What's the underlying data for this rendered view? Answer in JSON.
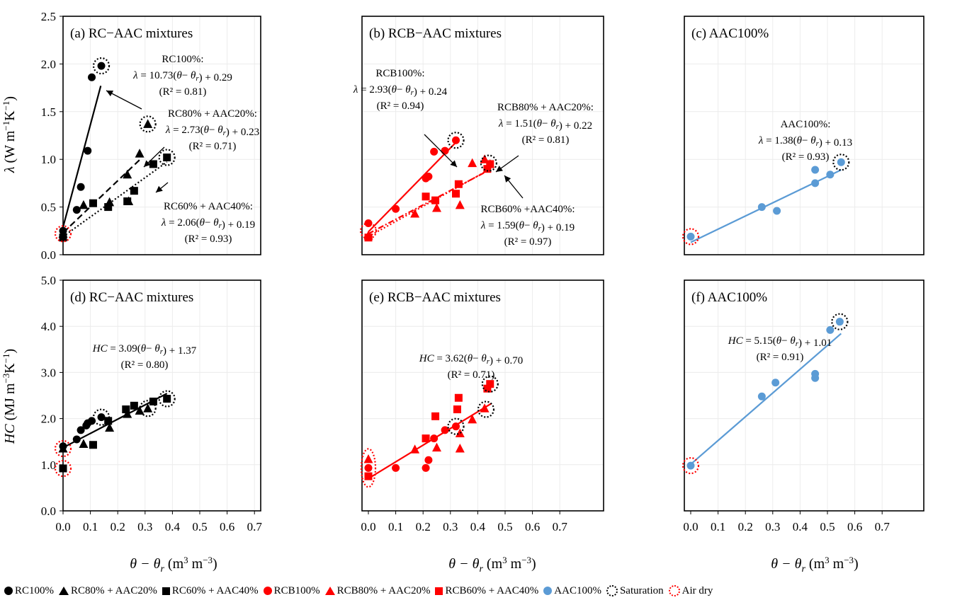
{
  "figure": {
    "y_labels": {
      "top": {
        "symbol": "λ",
        "units": "(W m",
        "exp1": "−1",
        "mid": "K",
        "exp2": "−1",
        "close": ")"
      },
      "bottom": {
        "symbol": "HC",
        "units": "(MJ m",
        "exp1": "−3",
        "mid": "K",
        "exp2": "−1",
        "close": ")"
      }
    },
    "x_label": {
      "symbol": "θ − θ",
      "sub": "r",
      "units": " (m",
      "exp1": "3",
      "mid": " m",
      "exp2": "−3",
      "close": ")"
    }
  },
  "legend": {
    "items": [
      {
        "label": "RC100%",
        "marker": "circle",
        "color": "#000000"
      },
      {
        "label": "RC80% + AAC20%",
        "marker": "triangle",
        "color": "#000000"
      },
      {
        "label": "RC60% + AAC40%",
        "marker": "square",
        "color": "#000000"
      },
      {
        "label": "RCB100%",
        "marker": "circle",
        "color": "#ff0000"
      },
      {
        "label": "RCB80% + AAC20%",
        "marker": "triangle",
        "color": "#ff0000"
      },
      {
        "label": "RCB60% + AAC40%",
        "marker": "square",
        "color": "#ff0000"
      },
      {
        "label": "AAC100%",
        "marker": "circle",
        "color": "#5b9bd5"
      },
      {
        "label": "Saturation",
        "marker": "ring",
        "color": "#000000"
      },
      {
        "label": "Air dry",
        "marker": "ring",
        "color": "#ff0000"
      }
    ]
  },
  "chart_data": [
    {
      "id": "a",
      "type": "scatter",
      "title": "(a) RC−AAC mixtures",
      "xlim": [
        0,
        0.7
      ],
      "ylim": [
        0,
        2.5
      ],
      "xticks": [
        "0.0",
        "0.1",
        "0.2",
        "0.3",
        "0.4",
        "0.5",
        "0.6",
        "0.7"
      ],
      "yticks": [
        "0.0",
        "0.5",
        "1.0",
        "1.5",
        "2.0",
        "2.5"
      ],
      "show_xticks": false,
      "show_yticks": true,
      "series": [
        {
          "name": "RC100%",
          "marker": "circle",
          "color": "#000000",
          "line": "solid",
          "fit": {
            "slope": 10.73,
            "intercept": 0.29,
            "xmax": 0.138
          },
          "points": [
            [
              0,
              0.25
            ],
            [
              0.05,
              0.47
            ],
            [
              0.065,
              0.71
            ],
            [
              0.09,
              1.09
            ],
            [
              0.105,
              1.86
            ],
            [
              0.14,
              1.98
            ]
          ]
        },
        {
          "name": "RC80% + AAC20%",
          "marker": "triangle",
          "color": "#000000",
          "line": "dashed",
          "fit": {
            "slope": 2.73,
            "intercept": 0.23,
            "xmax": 0.28
          },
          "points": [
            [
              0,
              0.22
            ],
            [
              0.075,
              0.52
            ],
            [
              0.17,
              0.55
            ],
            [
              0.235,
              0.84
            ],
            [
              0.24,
              0.56
            ],
            [
              0.28,
              1.06
            ],
            [
              0.31,
              1.37
            ]
          ]
        },
        {
          "name": "RC60% + AAC40%",
          "marker": "square",
          "color": "#000000",
          "line": "dotted",
          "fit": {
            "slope": 2.06,
            "intercept": 0.19,
            "xmax": 0.38
          },
          "points": [
            [
              0,
              0.18
            ],
            [
              0.11,
              0.54
            ],
            [
              0.165,
              0.5
            ],
            [
              0.235,
              0.56
            ],
            [
              0.26,
              0.67
            ],
            [
              0.33,
              0.95
            ],
            [
              0.38,
              1.02
            ]
          ]
        }
      ],
      "saturation": [
        [
          0.14,
          1.98
        ],
        [
          0.31,
          1.37
        ],
        [
          0.38,
          1.02
        ]
      ],
      "air_dry": [
        [
          0,
          0.22
        ]
      ],
      "annotations": [
        {
          "lines": [
            "RC100%:",
            "λ = 10.73(θ− θr) + 0.29",
            "(R² = 0.81)"
          ]
        },
        {
          "lines": [
            "RC80% + AAC20%:",
            "λ = 2.73(θ− θr) + 0.23",
            "(R² = 0.71)"
          ]
        },
        {
          "lines": [
            "RC60% + AAC40%:",
            "λ = 2.06(θ− θr) + 0.19",
            "(R² = 0.93)"
          ]
        }
      ]
    },
    {
      "id": "b",
      "type": "scatter",
      "title": "(b) RCB−AAC mixtures",
      "xlim": [
        0,
        0.7
      ],
      "ylim": [
        0,
        2.5
      ],
      "xticks": [],
      "yticks": [],
      "show_xticks": false,
      "show_yticks": false,
      "series": [
        {
          "name": "RCB100%",
          "marker": "circle",
          "color": "#ff0000",
          "line": "solid",
          "fit": {
            "slope": 2.93,
            "intercept": 0.24,
            "xmax": 0.32
          },
          "points": [
            [
              0,
              0.33
            ],
            [
              0.1,
              0.48
            ],
            [
              0.21,
              0.8
            ],
            [
              0.22,
              0.82
            ],
            [
              0.24,
              1.08
            ],
            [
              0.28,
              1.09
            ],
            [
              0.32,
              1.2
            ]
          ]
        },
        {
          "name": "RCB80% + AAC20%",
          "marker": "triangle",
          "color": "#ff0000",
          "line": "dashdot",
          "fit": {
            "slope": 1.51,
            "intercept": 0.22,
            "xmax": 0.44
          },
          "points": [
            [
              0,
              0.2
            ],
            [
              0.17,
              0.43
            ],
            [
              0.25,
              0.49
            ],
            [
              0.335,
              0.52
            ],
            [
              0.38,
              0.96
            ],
            [
              0.425,
              1.0
            ],
            [
              0.445,
              0.95
            ]
          ]
        },
        {
          "name": "RCB60% + AAC40%",
          "marker": "square",
          "color": "#ff0000",
          "line": "dotted",
          "fit": {
            "slope": 1.59,
            "intercept": 0.19,
            "xmax": 0.45
          },
          "points": [
            [
              0,
              0.18
            ],
            [
              0.21,
              0.61
            ],
            [
              0.245,
              0.57
            ],
            [
              0.32,
              0.64
            ],
            [
              0.33,
              0.74
            ],
            [
              0.435,
              0.9
            ],
            [
              0.445,
              0.95
            ]
          ]
        }
      ],
      "saturation": [
        [
          0.32,
          1.2
        ],
        [
          0.44,
          0.96
        ]
      ],
      "air_dry": [
        [
          0,
          0.25
        ]
      ],
      "annotations": [
        {
          "lines": [
            "RCB100%:",
            "λ = 2.93(θ− θr) + 0.24",
            "(R² = 0.94)"
          ]
        },
        {
          "lines": [
            "RCB80% + AAC20%:",
            "λ = 1.51(θ− θr) + 0.22",
            "(R² = 0.81)"
          ]
        },
        {
          "lines": [
            "RCB60% +AAC40%:",
            "λ = 1.59(θ− θr) + 0.19",
            "(R² = 0.97)"
          ]
        }
      ]
    },
    {
      "id": "c",
      "type": "scatter",
      "title": "(c) AAC100%",
      "xlim": [
        0,
        0.7
      ],
      "ylim": [
        0,
        2.5
      ],
      "xticks": [],
      "yticks": [],
      "show_xticks": false,
      "show_yticks": false,
      "series": [
        {
          "name": "AAC100%",
          "marker": "circle",
          "color": "#5b9bd5",
          "line": "solid",
          "fit": {
            "slope": 1.38,
            "intercept": 0.13,
            "xmax": 0.55
          },
          "points": [
            [
              0,
              0.19
            ],
            [
              0.26,
              0.5
            ],
            [
              0.315,
              0.46
            ],
            [
              0.455,
              0.75
            ],
            [
              0.455,
              0.89
            ],
            [
              0.51,
              0.84
            ],
            [
              0.55,
              0.97
            ]
          ]
        }
      ],
      "saturation": [
        [
          0.55,
          0.97
        ]
      ],
      "air_dry": [
        [
          0,
          0.19
        ]
      ],
      "annotations": [
        {
          "lines": [
            "AAC100%:",
            "λ = 1.38(θ− θr) + 0.13",
            "(R² = 0.93)"
          ]
        }
      ]
    },
    {
      "id": "d",
      "type": "scatter",
      "title": "(d) RC−AAC mixtures",
      "xlim": [
        0,
        0.7
      ],
      "ylim": [
        0,
        5.0
      ],
      "xticks": [
        "0.0",
        "0.1",
        "0.2",
        "0.3",
        "0.4",
        "0.5",
        "0.6",
        "0.7"
      ],
      "yticks": [
        "0.0",
        "1.0",
        "2.0",
        "3.0",
        "4.0",
        "5.0"
      ],
      "show_xticks": true,
      "show_yticks": true,
      "series": [
        {
          "name": "RC100%",
          "marker": "circle",
          "color": "#000000",
          "line": "none",
          "points": [
            [
              0,
              1.4
            ],
            [
              0.05,
              1.55
            ],
            [
              0.065,
              1.75
            ],
            [
              0.085,
              1.85
            ],
            [
              0.09,
              1.9
            ],
            [
              0.105,
              1.95
            ],
            [
              0.14,
              2.03
            ]
          ]
        },
        {
          "name": "RC80% + AAC20%",
          "marker": "triangle",
          "color": "#000000",
          "line": "none",
          "points": [
            [
              0,
              1.35
            ],
            [
              0.075,
              1.45
            ],
            [
              0.17,
              1.8
            ],
            [
              0.235,
              2.1
            ],
            [
              0.28,
              2.17
            ],
            [
              0.31,
              2.22
            ]
          ]
        },
        {
          "name": "RC60% + AAC40%",
          "marker": "square",
          "color": "#000000",
          "line": "none",
          "points": [
            [
              0,
              0.92
            ],
            [
              0.11,
              1.43
            ],
            [
              0.165,
              1.95
            ],
            [
              0.23,
              2.2
            ],
            [
              0.26,
              2.28
            ],
            [
              0.33,
              2.37
            ],
            [
              0.38,
              2.43
            ]
          ]
        },
        {
          "name": "fit",
          "marker": "none",
          "color": "#000000",
          "line": "solid",
          "fit": {
            "slope": 3.09,
            "intercept": 1.37,
            "xmax": 0.38
          },
          "points": []
        }
      ],
      "saturation": [
        [
          0.14,
          2.03
        ],
        [
          0.31,
          2.22
        ],
        [
          0.38,
          2.43
        ]
      ],
      "air_dry": [
        [
          0,
          1.35
        ],
        [
          0,
          0.92
        ]
      ],
      "annotations": [
        {
          "lines": [
            "HC = 3.09(θ− θr) + 1.37",
            "(R² = 0.80)"
          ]
        }
      ]
    },
    {
      "id": "e",
      "type": "scatter",
      "title": "(e) RCB−AAC mixtures",
      "xlim": [
        0,
        0.7
      ],
      "ylim": [
        0,
        5.0
      ],
      "xticks": [
        "0.0",
        "0.1",
        "0.2",
        "0.3",
        "0.4",
        "0.5",
        "0.6",
        "0.7"
      ],
      "yticks": [],
      "show_xticks": true,
      "show_yticks": false,
      "series": [
        {
          "name": "RCB100%",
          "marker": "circle",
          "color": "#ff0000",
          "line": "none",
          "points": [
            [
              0,
              0.93
            ],
            [
              0.1,
              0.93
            ],
            [
              0.21,
              0.93
            ],
            [
              0.22,
              1.1
            ],
            [
              0.24,
              1.57
            ],
            [
              0.28,
              1.75
            ],
            [
              0.32,
              1.83
            ]
          ]
        },
        {
          "name": "RCB80% + AAC20%",
          "marker": "triangle",
          "color": "#ff0000",
          "line": "none",
          "points": [
            [
              0,
              1.12
            ],
            [
              0.17,
              1.33
            ],
            [
              0.25,
              1.37
            ],
            [
              0.335,
              1.35
            ],
            [
              0.335,
              1.68
            ],
            [
              0.38,
              1.98
            ],
            [
              0.425,
              2.22
            ]
          ]
        },
        {
          "name": "RCB60% + AAC40%",
          "marker": "square",
          "color": "#ff0000",
          "line": "none",
          "points": [
            [
              0,
              0.75
            ],
            [
              0.21,
              1.57
            ],
            [
              0.245,
              2.05
            ],
            [
              0.325,
              2.2
            ],
            [
              0.33,
              2.45
            ],
            [
              0.435,
              2.65
            ],
            [
              0.445,
              2.75
            ]
          ]
        },
        {
          "name": "fit",
          "marker": "none",
          "color": "#ff0000",
          "line": "solid",
          "fit": {
            "slope": 3.62,
            "intercept": 0.7,
            "xmax": 0.45
          },
          "points": []
        }
      ],
      "saturation": [
        [
          0.32,
          1.83
        ],
        [
          0.43,
          2.2
        ],
        [
          0.445,
          2.75
        ]
      ],
      "air_dry_ellipse": [
        0,
        0.93
      ],
      "annotations": [
        {
          "lines": [
            "HC = 3.62(θ− θr) + 0.70",
            "(R² = 0.71)"
          ]
        }
      ]
    },
    {
      "id": "f",
      "type": "scatter",
      "title": "(f) AAC100%",
      "xlim": [
        0,
        0.7
      ],
      "ylim": [
        0,
        5.0
      ],
      "xticks": [
        "0.0",
        "0.1",
        "0.2",
        "0.3",
        "0.4",
        "0.5",
        "0.6",
        "0.7"
      ],
      "yticks": [],
      "show_xticks": true,
      "show_yticks": false,
      "series": [
        {
          "name": "AAC100%",
          "marker": "circle",
          "color": "#5b9bd5",
          "line": "solid",
          "fit": {
            "slope": 5.15,
            "intercept": 1.01,
            "xmax": 0.55
          },
          "points": [
            [
              0,
              0.98
            ],
            [
              0.26,
              2.48
            ],
            [
              0.31,
              2.78
            ],
            [
              0.455,
              2.88
            ],
            [
              0.455,
              2.97
            ],
            [
              0.51,
              3.92
            ],
            [
              0.545,
              4.1
            ]
          ]
        }
      ],
      "saturation": [
        [
          0.545,
          4.1
        ]
      ],
      "air_dry": [
        [
          0,
          0.98
        ]
      ],
      "annotations": [
        {
          "lines": [
            "HC = 5.15(θ− θr) + 1.01",
            "(R² = 0.91)"
          ]
        }
      ]
    }
  ]
}
